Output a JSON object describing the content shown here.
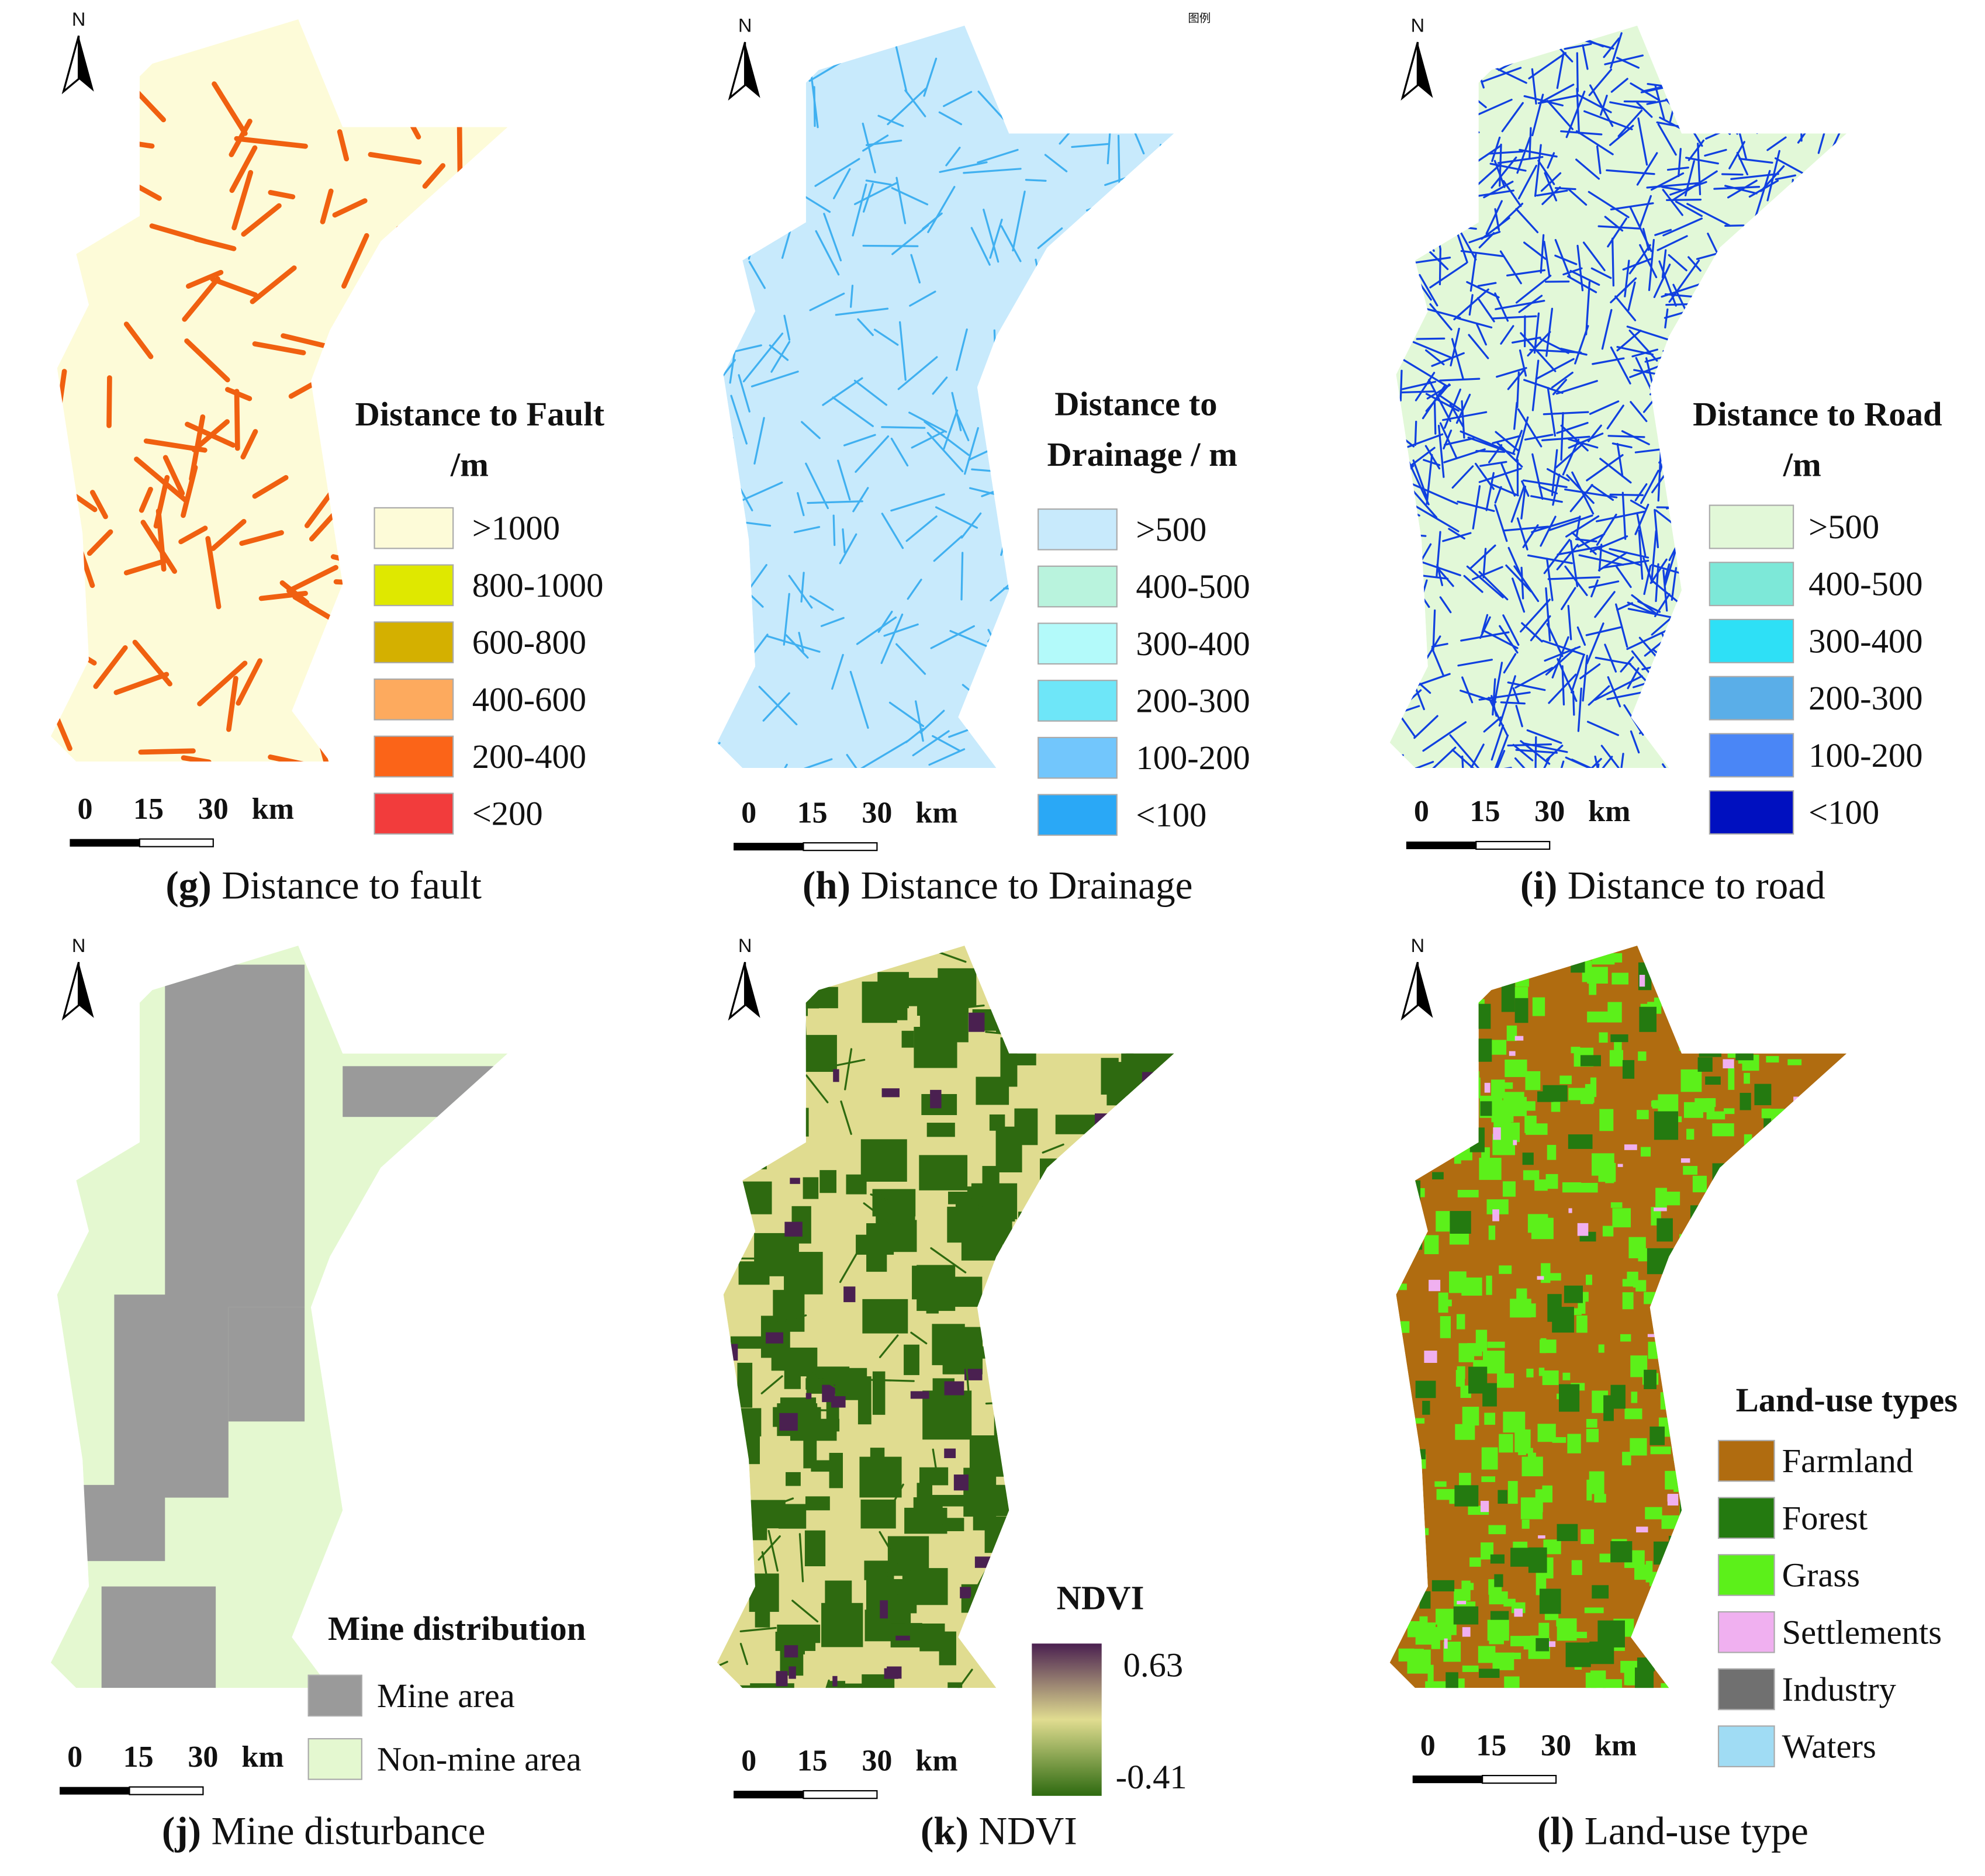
{
  "panels": [
    {
      "id_label": "(g)",
      "caption": "Distance to fault",
      "north": "N",
      "scale_bar": [
        "0",
        "15",
        "30",
        "km"
      ],
      "legend": {
        "title": [
          "Distance to Fault",
          "/m"
        ],
        "items": [
          {
            "label": ">1000",
            "color": "#fdfbd8"
          },
          {
            "label": "800-1000",
            "color": "#dfe800"
          },
          {
            "label": "600-800",
            "color": "#d4b000"
          },
          {
            "label": "400-600",
            "color": "#fdaa5e"
          },
          {
            "label": "200-400",
            "color": "#fb6418"
          },
          {
            "label": "<200",
            "color": "#f23c3c"
          }
        ]
      }
    },
    {
      "id_label": "(h)",
      "caption": "Distance to Drainage",
      "north": "N",
      "scale_bar": [
        "0",
        "15",
        "30",
        "km"
      ],
      "note": "图例",
      "legend": {
        "title": [
          "Distance to",
          "Drainage / m"
        ],
        "items": [
          {
            "label": ">500",
            "color": "#c8eafc"
          },
          {
            "label": "400-500",
            "color": "#b9f3dd"
          },
          {
            "label": "300-400",
            "color": "#b3fafa"
          },
          {
            "label": "200-300",
            "color": "#6ee6f8"
          },
          {
            "label": "100-200",
            "color": "#72c6fc"
          },
          {
            "label": "<100",
            "color": "#2aa8f6"
          }
        ]
      }
    },
    {
      "id_label": "(i)",
      "caption": "Distance to road",
      "north": "N",
      "scale_bar": [
        "0",
        "15",
        "30",
        "km"
      ],
      "legend": {
        "title": [
          "Distance to Road",
          "/m"
        ],
        "items": [
          {
            "label": ">500",
            "color": "#e2f8d8"
          },
          {
            "label": "400-500",
            "color": "#7de8d8"
          },
          {
            "label": "300-400",
            "color": "#2ee0f6"
          },
          {
            "label": "200-300",
            "color": "#5aaee8"
          },
          {
            "label": "100-200",
            "color": "#4a86f6"
          },
          {
            "label": "<100",
            "color": "#0010c0"
          }
        ]
      }
    },
    {
      "id_label": "(j)",
      "caption": "Mine disturbance",
      "north": "N",
      "scale_bar": [
        "0",
        "15",
        "30",
        "km"
      ],
      "legend": {
        "title": [
          "Mine distribution"
        ],
        "items": [
          {
            "label": "Mine area",
            "color": "#9a9a9a"
          },
          {
            "label": "Non-mine area",
            "color": "#e4f8d0"
          }
        ]
      }
    },
    {
      "id_label": "(k)",
      "caption": "NDVI",
      "north": "N",
      "scale_bar": [
        "0",
        "15",
        "30",
        "km"
      ],
      "legend": {
        "title": [
          "NDVI"
        ],
        "max": "0.63",
        "min": "-0.41",
        "colors": [
          "#4a2050",
          "#e0dc90",
          "#2e6a10"
        ]
      }
    },
    {
      "id_label": "(l)",
      "caption": "Land-use type",
      "north": "N",
      "scale_bar": [
        "0",
        "15",
        "30",
        "km"
      ],
      "legend": {
        "title": [
          "Land-use types"
        ],
        "items": [
          {
            "label": "Farmland",
            "color": "#b06c10"
          },
          {
            "label": "Forest",
            "color": "#247a10"
          },
          {
            "label": "Grass",
            "color": "#5cf01a"
          },
          {
            "label": "Settlements",
            "color": "#f0b0f0"
          },
          {
            "label": "Industry",
            "color": "#707070"
          },
          {
            "label": "Waters",
            "color": "#a0dcf4"
          }
        ]
      }
    }
  ]
}
